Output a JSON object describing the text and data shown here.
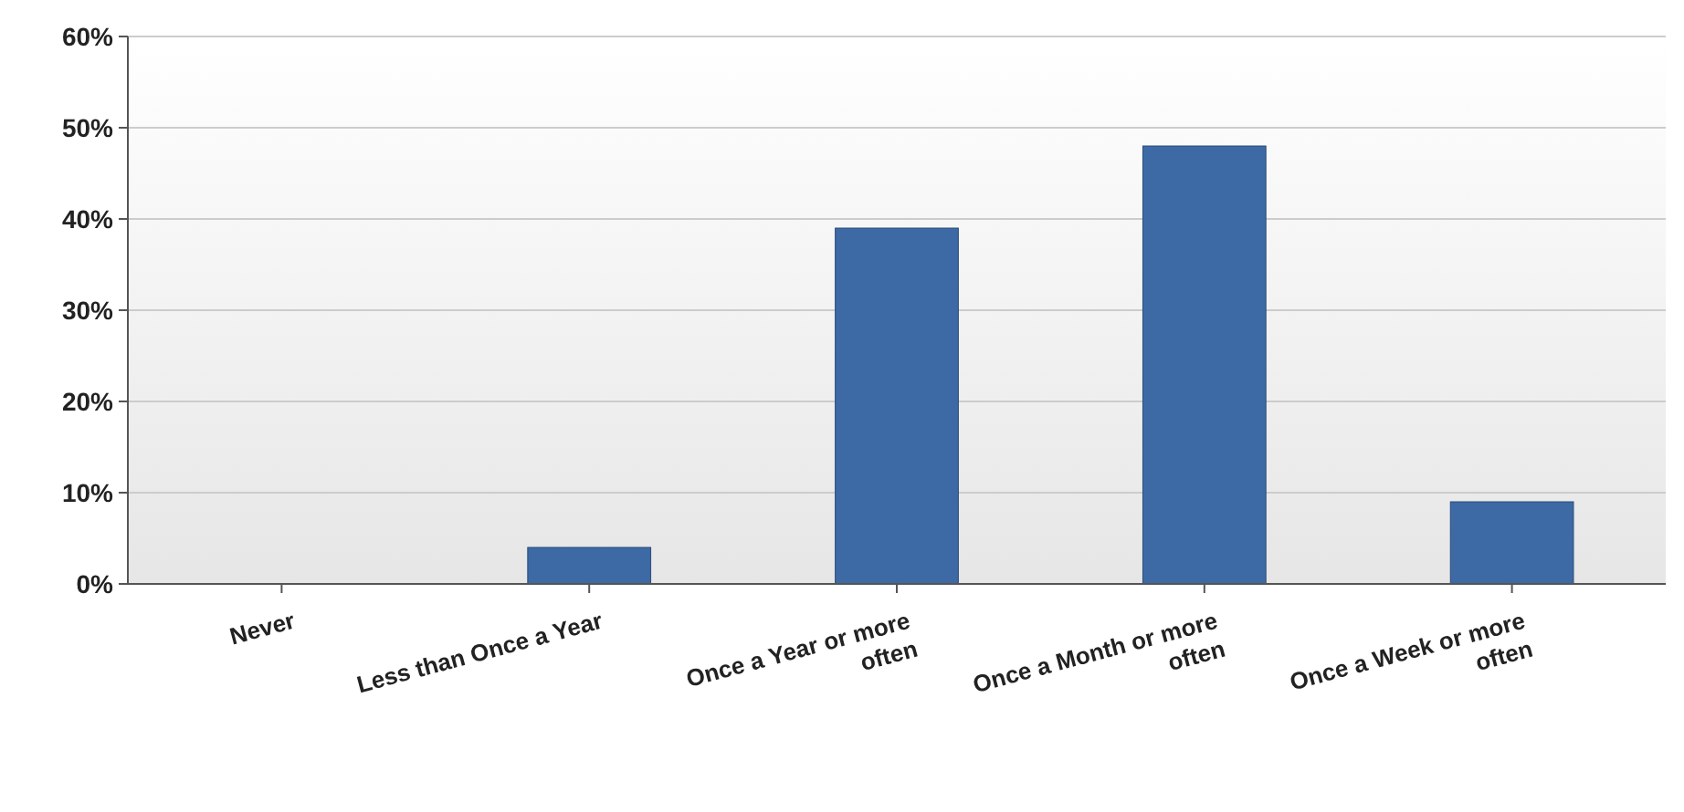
{
  "chart_data": {
    "type": "bar",
    "categories": [
      "Never",
      "Less than Once a Year",
      "Once a Year or more often",
      "Once a Month or more often",
      "Once a Week or more often"
    ],
    "values": [
      0,
      4,
      39,
      48,
      9
    ],
    "color": "#3d6aa5",
    "ylim": [
      0,
      60
    ],
    "yticks": [
      {
        "value": 0,
        "label": "0%"
      },
      {
        "value": 10,
        "label": "10%"
      },
      {
        "value": 20,
        "label": "20%"
      },
      {
        "value": 30,
        "label": "30%"
      },
      {
        "value": 40,
        "label": "40%"
      },
      {
        "value": 50,
        "label": "50%"
      },
      {
        "value": 60,
        "label": "60%"
      }
    ],
    "grid": "y"
  }
}
